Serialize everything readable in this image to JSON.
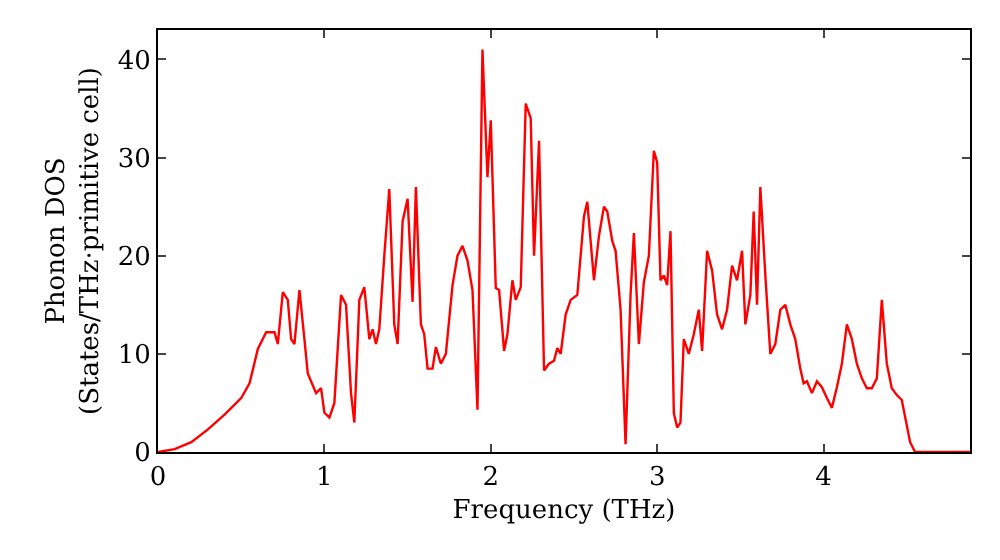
{
  "chart_data": {
    "type": "line",
    "xlabel": "Frequency (THz)",
    "ylabel": "Phonon DOS\n(States/THz·primitive cell)",
    "xlim": [
      0,
      4.88
    ],
    "ylim": [
      0,
      43
    ],
    "xticks": [
      0,
      1,
      2,
      3,
      4
    ],
    "yticks": [
      0,
      10,
      20,
      30,
      40
    ],
    "marker": "none",
    "line_style": "solid",
    "series": [
      {
        "color": "#ff0000",
        "x": [
          0,
          0.1,
          0.2,
          0.3,
          0.4,
          0.5,
          0.55,
          0.6,
          0.65,
          0.7,
          0.72,
          0.75,
          0.78,
          0.8,
          0.82,
          0.85,
          0.88,
          0.9,
          0.95,
          0.98,
          1.0,
          1.03,
          1.06,
          1.1,
          1.13,
          1.16,
          1.18,
          1.21,
          1.24,
          1.27,
          1.29,
          1.31,
          1.33,
          1.36,
          1.39,
          1.42,
          1.44,
          1.47,
          1.5,
          1.53,
          1.55,
          1.58,
          1.6,
          1.62,
          1.65,
          1.67,
          1.7,
          1.73,
          1.77,
          1.8,
          1.83,
          1.86,
          1.89,
          1.92,
          1.95,
          1.98,
          2.0,
          2.03,
          2.05,
          2.08,
          2.1,
          2.13,
          2.15,
          2.18,
          2.21,
          2.24,
          2.26,
          2.29,
          2.32,
          2.35,
          2.38,
          2.4,
          2.42,
          2.45,
          2.48,
          2.52,
          2.56,
          2.58,
          2.62,
          2.65,
          2.68,
          2.7,
          2.73,
          2.75,
          2.78,
          2.81,
          2.84,
          2.86,
          2.89,
          2.92,
          2.95,
          2.98,
          3.0,
          3.02,
          3.04,
          3.06,
          3.08,
          3.1,
          3.12,
          3.14,
          3.16,
          3.19,
          3.22,
          3.25,
          3.27,
          3.3,
          3.33,
          3.36,
          3.39,
          3.42,
          3.45,
          3.48,
          3.51,
          3.53,
          3.56,
          3.58,
          3.6,
          3.62,
          3.65,
          3.68,
          3.71,
          3.74,
          3.77,
          3.8,
          3.83,
          3.86,
          3.88,
          3.9,
          3.93,
          3.96,
          3.99,
          4.02,
          4.05,
          4.08,
          4.11,
          4.14,
          4.17,
          4.2,
          4.23,
          4.26,
          4.29,
          4.32,
          4.35,
          4.38,
          4.41,
          4.44,
          4.47,
          4.52,
          4.55,
          4.88
        ],
        "values": [
          0,
          0.3,
          1,
          2.3,
          3.8,
          5.5,
          7,
          10.5,
          12.2,
          12.2,
          11,
          16.3,
          15.5,
          11.5,
          11,
          16.5,
          11.5,
          8,
          6,
          6.5,
          4,
          3.5,
          5,
          16,
          15,
          6,
          3,
          15.5,
          16.8,
          11.5,
          12.5,
          11,
          12.5,
          20,
          26.8,
          13,
          11,
          23.5,
          25.8,
          15.3,
          27,
          13,
          12,
          8.5,
          8.5,
          10.7,
          9,
          10,
          17,
          20,
          21,
          19.5,
          16.5,
          4.3,
          41,
          28,
          33.8,
          16.7,
          16.5,
          10.3,
          12,
          17.5,
          15.5,
          16.8,
          35.5,
          34,
          20,
          31.7,
          8.3,
          9,
          9.3,
          10.6,
          10,
          14,
          15.5,
          16,
          24,
          25.5,
          17.5,
          22,
          25,
          24.5,
          21.5,
          20.5,
          14.5,
          0.8,
          16,
          22.3,
          11,
          17.3,
          20,
          30.7,
          29.5,
          17.5,
          18,
          17,
          22.5,
          4,
          2.5,
          3,
          11.5,
          10,
          12,
          14.5,
          10.3,
          20.5,
          18.5,
          14,
          12.5,
          14.5,
          19,
          17.5,
          20.5,
          13,
          16,
          24.5,
          15,
          27,
          18,
          10,
          11,
          14.5,
          15,
          13,
          11.5,
          8.5,
          7,
          7.2,
          6,
          7.2,
          6.6,
          5.5,
          4.5,
          6.6,
          9,
          13,
          11.5,
          9,
          7.5,
          6.5,
          6.5,
          7.5,
          15.5,
          9,
          6.5,
          5.8,
          5.3,
          1,
          0,
          0
        ]
      }
    ]
  }
}
